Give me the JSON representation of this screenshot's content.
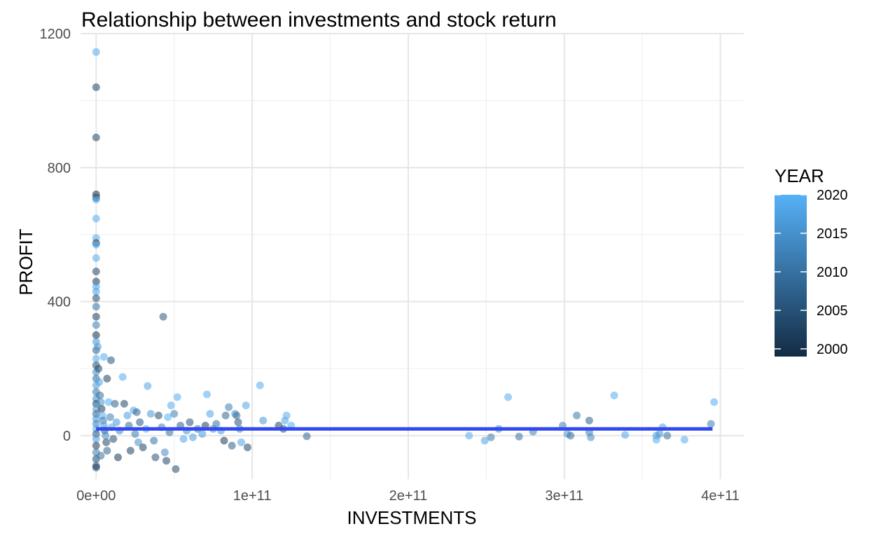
{
  "chart_data": {
    "type": "scatter",
    "title": "Relationship between investments and stock return",
    "xlabel": "INVESTMENTS",
    "ylabel": "PROFIT",
    "xlim": [
      -10000000000.0,
      415000000000.0
    ],
    "ylim": [
      -130,
      1200
    ],
    "x_ticks": [
      0,
      100000000000.0,
      200000000000.0,
      300000000000.0,
      400000000000.0
    ],
    "x_tick_labels": [
      "0e+00",
      "1e+11",
      "2e+11",
      "3e+11",
      "4e+11"
    ],
    "y_ticks": [
      0,
      400,
      800,
      1200
    ],
    "y_tick_labels": [
      "0",
      "400",
      "800",
      "1200"
    ],
    "grid": true,
    "legend": {
      "title": "YEAR",
      "placement": "right",
      "type": "colorbar",
      "range": [
        1999,
        2020
      ],
      "ticks": [
        2000,
        2005,
        2010,
        2015,
        2020
      ],
      "tick_labels": [
        "2000",
        "2005",
        "2010",
        "2015",
        "2020"
      ],
      "color_low": "#132B43",
      "color_high": "#56B1F7"
    },
    "trend_line": {
      "x": [
        0,
        395000000000.0
      ],
      "y": [
        20,
        20
      ],
      "color": "#3248f0"
    },
    "points": [
      {
        "x": 0,
        "y": 1145,
        "year": 2019
      },
      {
        "x": 0,
        "y": 1040,
        "year": 2003
      },
      {
        "x": 0,
        "y": 890,
        "year": 2003
      },
      {
        "x": 0,
        "y": 720,
        "year": 1999
      },
      {
        "x": 0,
        "y": 710,
        "year": 2001
      },
      {
        "x": 0,
        "y": 705,
        "year": 2019
      },
      {
        "x": 0,
        "y": 648,
        "year": 2019
      },
      {
        "x": 0,
        "y": 590,
        "year": 2019
      },
      {
        "x": 0,
        "y": 575,
        "year": 2000
      },
      {
        "x": 0,
        "y": 570,
        "year": 2019
      },
      {
        "x": 0,
        "y": 530,
        "year": 2019
      },
      {
        "x": 0,
        "y": 490,
        "year": 2003
      },
      {
        "x": 0,
        "y": 460,
        "year": 2001
      },
      {
        "x": 0,
        "y": 445,
        "year": 2018
      },
      {
        "x": 0,
        "y": 430,
        "year": 2018
      },
      {
        "x": 0,
        "y": 410,
        "year": 2004
      },
      {
        "x": 0,
        "y": 385,
        "year": 2010
      },
      {
        "x": 0,
        "y": 355,
        "year": 2002
      },
      {
        "x": 0,
        "y": 330,
        "year": 2012
      },
      {
        "x": 0,
        "y": 300,
        "year": 2000
      },
      {
        "x": 0,
        "y": 280,
        "year": 2016
      },
      {
        "x": 0,
        "y": 255,
        "year": 2007
      },
      {
        "x": 0,
        "y": 230,
        "year": 2019
      },
      {
        "x": 0,
        "y": 210,
        "year": 2005
      },
      {
        "x": 0,
        "y": 190,
        "year": 2014
      },
      {
        "x": 0,
        "y": 170,
        "year": 2009
      },
      {
        "x": 0,
        "y": 150,
        "year": 2017
      },
      {
        "x": 0,
        "y": 130,
        "year": 2011
      },
      {
        "x": 0,
        "y": 110,
        "year": 2015
      },
      {
        "x": 0,
        "y": 95,
        "year": 2003
      },
      {
        "x": 0,
        "y": 80,
        "year": 2018
      },
      {
        "x": 0,
        "y": 65,
        "year": 2008
      },
      {
        "x": 0,
        "y": 50,
        "year": 2016
      },
      {
        "x": 0,
        "y": 35,
        "year": 2013
      },
      {
        "x": 0,
        "y": 20,
        "year": 2019
      },
      {
        "x": 0,
        "y": 5,
        "year": 2006
      },
      {
        "x": 0,
        "y": -10,
        "year": 2017
      },
      {
        "x": 0,
        "y": -30,
        "year": 2002
      },
      {
        "x": 0,
        "y": -50,
        "year": 2012
      },
      {
        "x": 0,
        "y": -70,
        "year": 2004
      },
      {
        "x": 0,
        "y": -90,
        "year": 2008
      },
      {
        "x": 0,
        "y": -95,
        "year": 2001
      },
      {
        "x": 1000000000.0,
        "y": 265,
        "year": 2016
      },
      {
        "x": 1500000000.0,
        "y": 200,
        "year": 2004
      },
      {
        "x": 2000000000.0,
        "y": 160,
        "year": 2018
      },
      {
        "x": 2500000000.0,
        "y": 120,
        "year": 2009
      },
      {
        "x": 3000000000.0,
        "y": 100,
        "year": 2015
      },
      {
        "x": 3500000000.0,
        "y": 80,
        "year": 2002
      },
      {
        "x": 4000000000.0,
        "y": 60,
        "year": 2019
      },
      {
        "x": 4500000000.0,
        "y": 45,
        "year": 2011
      },
      {
        "x": 5000000000.0,
        "y": 30,
        "year": 2017
      },
      {
        "x": 5500000000.0,
        "y": 15,
        "year": 2006
      },
      {
        "x": 6000000000.0,
        "y": 0,
        "year": 2014
      },
      {
        "x": 6500000000.0,
        "y": -20,
        "year": 2003
      },
      {
        "x": 7000000000.0,
        "y": -45,
        "year": 2008
      },
      {
        "x": 3000000000.0,
        "y": -60,
        "year": 2010
      },
      {
        "x": 5000000000.0,
        "y": 235,
        "year": 2019
      },
      {
        "x": 7000000000.0,
        "y": 170,
        "year": 2002
      },
      {
        "x": 9500000000.0,
        "y": 225,
        "year": 2005
      },
      {
        "x": 8000000000.0,
        "y": 100,
        "year": 2020
      },
      {
        "x": 9000000000.0,
        "y": 55,
        "year": 2012
      },
      {
        "x": 10000000000.0,
        "y": 25,
        "year": 2018
      },
      {
        "x": 11000000000.0,
        "y": -10,
        "year": 2004
      },
      {
        "x": 12000000000.0,
        "y": 95,
        "year": 2007
      },
      {
        "x": 13000000000.0,
        "y": 40,
        "year": 2016
      },
      {
        "x": 14000000000.0,
        "y": -65,
        "year": 2001
      },
      {
        "x": 15000000000.0,
        "y": 15,
        "year": 2013
      },
      {
        "x": 17000000000.0,
        "y": 175,
        "year": 2019
      },
      {
        "x": 18000000000.0,
        "y": 95,
        "year": 2003
      },
      {
        "x": 20000000000.0,
        "y": 60,
        "year": 2017
      },
      {
        "x": 21000000000.0,
        "y": 30,
        "year": 2009
      },
      {
        "x": 22000000000.0,
        "y": -45,
        "year": 2002
      },
      {
        "x": 24000000000.0,
        "y": 75,
        "year": 2018
      },
      {
        "x": 25000000000.0,
        "y": 5,
        "year": 2011
      },
      {
        "x": 26000000000.0,
        "y": 70,
        "year": 2008
      },
      {
        "x": 27000000000.0,
        "y": -20,
        "year": 2015
      },
      {
        "x": 28000000000.0,
        "y": 40,
        "year": 2006
      },
      {
        "x": 30000000000.0,
        "y": -35,
        "year": 2003
      },
      {
        "x": 32000000000.0,
        "y": 20,
        "year": 2019
      },
      {
        "x": 33000000000.0,
        "y": 148,
        "year": 2018
      },
      {
        "x": 35000000000.0,
        "y": 65,
        "year": 2016
      },
      {
        "x": 37000000000.0,
        "y": -15,
        "year": 2010
      },
      {
        "x": 38000000000.0,
        "y": -65,
        "year": 2005
      },
      {
        "x": 40000000000.0,
        "y": 60,
        "year": 2004
      },
      {
        "x": 42000000000.0,
        "y": 25,
        "year": 2013
      },
      {
        "x": 43000000000.0,
        "y": 355,
        "year": 2006
      },
      {
        "x": 44000000000.0,
        "y": -50,
        "year": 2014
      },
      {
        "x": 45000000000.0,
        "y": -75,
        "year": 2003
      },
      {
        "x": 46000000000.0,
        "y": 55,
        "year": 2020
      },
      {
        "x": 47000000000.0,
        "y": 10,
        "year": 2009
      },
      {
        "x": 48000000000.0,
        "y": 90,
        "year": 2019
      },
      {
        "x": 50000000000.0,
        "y": 65,
        "year": 2012
      },
      {
        "x": 51000000000.0,
        "y": -100,
        "year": 2004
      },
      {
        "x": 52000000000.0,
        "y": 115,
        "year": 2019
      },
      {
        "x": 54000000000.0,
        "y": 30,
        "year": 2007
      },
      {
        "x": 56000000000.0,
        "y": -10,
        "year": 2018
      },
      {
        "x": 58000000000.0,
        "y": 15,
        "year": 2015
      },
      {
        "x": 60000000000.0,
        "y": 40,
        "year": 2005
      },
      {
        "x": 62000000000.0,
        "y": -5,
        "year": 2017
      },
      {
        "x": 65000000000.0,
        "y": 20,
        "year": 2011
      },
      {
        "x": 68000000000.0,
        "y": 5,
        "year": 2016
      },
      {
        "x": 70000000000.0,
        "y": 30,
        "year": 2002
      },
      {
        "x": 71000000000.0,
        "y": 123,
        "year": 2019
      },
      {
        "x": 73000000000.0,
        "y": 65,
        "year": 2018
      },
      {
        "x": 75000000000.0,
        "y": 20,
        "year": 2014
      },
      {
        "x": 77000000000.0,
        "y": 35,
        "year": 2010
      },
      {
        "x": 80000000000.0,
        "y": 15,
        "year": 2016
      },
      {
        "x": 82000000000.0,
        "y": -15,
        "year": 2001
      },
      {
        "x": 83000000000.0,
        "y": 60,
        "year": 2008
      },
      {
        "x": 85000000000.0,
        "y": 85,
        "year": 2012
      },
      {
        "x": 87000000000.0,
        "y": -30,
        "year": 2007
      },
      {
        "x": 89000000000.0,
        "y": 65,
        "year": 2015
      },
      {
        "x": 90000000000.0,
        "y": 60,
        "year": 2009
      },
      {
        "x": 91000000000.0,
        "y": 40,
        "year": 2005
      },
      {
        "x": 92000000000.0,
        "y": 20,
        "year": 2013
      },
      {
        "x": 93000000000.0,
        "y": -20,
        "year": 2018
      },
      {
        "x": 96000000000.0,
        "y": 90,
        "year": 2018
      },
      {
        "x": 97000000000.0,
        "y": -35,
        "year": 2003
      },
      {
        "x": 105000000000.0,
        "y": 150,
        "year": 2019
      },
      {
        "x": 107000000000.0,
        "y": 45,
        "year": 2016
      },
      {
        "x": 117000000000.0,
        "y": 30,
        "year": 2003
      },
      {
        "x": 120000000000.0,
        "y": 20,
        "year": 2006
      },
      {
        "x": 121000000000.0,
        "y": 45,
        "year": 2018
      },
      {
        "x": 122000000000.0,
        "y": 60,
        "year": 2019
      },
      {
        "x": 125000000000.0,
        "y": 30,
        "year": 2019
      },
      {
        "x": 135000000000.0,
        "y": -2,
        "year": 2008
      },
      {
        "x": 239000000000.0,
        "y": 0,
        "year": 2019
      },
      {
        "x": 249000000000.0,
        "y": -15,
        "year": 2018
      },
      {
        "x": 253000000000.0,
        "y": -5,
        "year": 2011
      },
      {
        "x": 258000000000.0,
        "y": 20,
        "year": 2015
      },
      {
        "x": 264000000000.0,
        "y": 115,
        "year": 2019
      },
      {
        "x": 271000000000.0,
        "y": -3,
        "year": 2010
      },
      {
        "x": 280000000000.0,
        "y": 12,
        "year": 2012
      },
      {
        "x": 299000000000.0,
        "y": 30,
        "year": 2013
      },
      {
        "x": 302000000000.0,
        "y": 5,
        "year": 2016
      },
      {
        "x": 304000000000.0,
        "y": 0,
        "year": 2009
      },
      {
        "x": 308000000000.0,
        "y": 60,
        "year": 2011
      },
      {
        "x": 316000000000.0,
        "y": 45,
        "year": 2007
      },
      {
        "x": 316000000000.0,
        "y": 10,
        "year": 2012
      },
      {
        "x": 317000000000.0,
        "y": -5,
        "year": 2014
      },
      {
        "x": 332000000000.0,
        "y": 120,
        "year": 2019
      },
      {
        "x": 339000000000.0,
        "y": 2,
        "year": 2018
      },
      {
        "x": 359000000000.0,
        "y": 0,
        "year": 2017
      },
      {
        "x": 359000000000.0,
        "y": -12,
        "year": 2019
      },
      {
        "x": 361000000000.0,
        "y": 5,
        "year": 2015
      },
      {
        "x": 363000000000.0,
        "y": 25,
        "year": 2018
      },
      {
        "x": 366000000000.0,
        "y": 0,
        "year": 2010
      },
      {
        "x": 377000000000.0,
        "y": -12,
        "year": 2019
      },
      {
        "x": 394000000000.0,
        "y": 35,
        "year": 2012
      },
      {
        "x": 396000000000.0,
        "y": 100,
        "year": 2019
      }
    ]
  }
}
